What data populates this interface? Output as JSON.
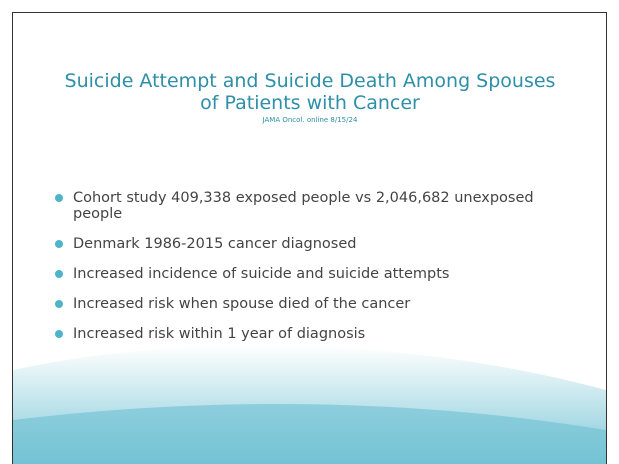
{
  "title": "Suicide Attempt and Suicide Death Among Spouses of Patients with Cancer",
  "citation": "JAMA Oncol. online 8/15/24",
  "bullets": [
    "Cohort study 409,338 exposed people vs 2,046,682 unexposed people",
    "Denmark  1986-2015  cancer diagnosed",
    "Increased incidence of suicide and suicide attempts",
    "Increased risk when spouse died of the cancer",
    "Increased risk within 1 year of diagnosis"
  ]
}
